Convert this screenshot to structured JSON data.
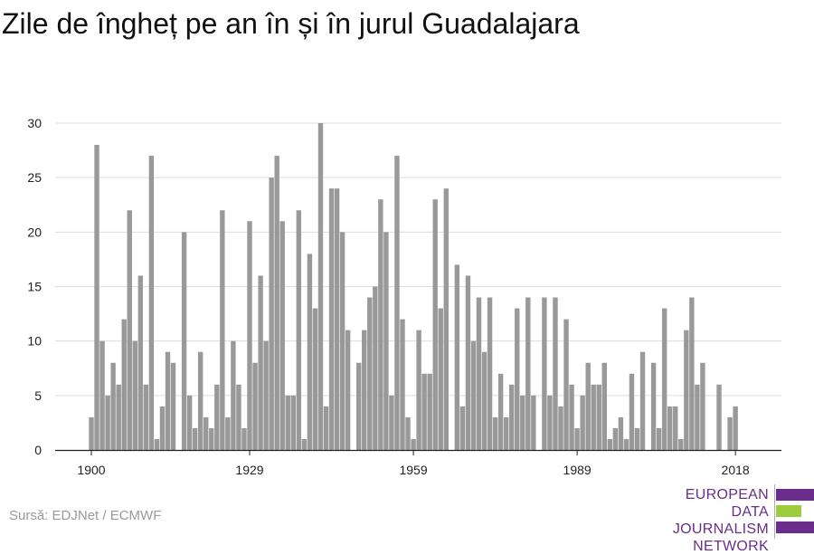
{
  "title": "Zile de îngheț pe an în și în jurul Guadalajara",
  "source": "Sursă: EDJNet / ECMWF",
  "logo": {
    "line1": "EUROPEAN",
    "line2": "DATA JOURNALISM",
    "line3": "NETWORK",
    "colors": [
      "#6b2d8c",
      "#9ccb3b",
      "#6b2d8c"
    ]
  },
  "chart_data": {
    "type": "bar",
    "title": "Zile de îngheț pe an în și în jurul Guadalajara",
    "xlabel": "",
    "ylabel": "",
    "x_start": 1900,
    "x_end": 2018,
    "x_ticks": [
      1900,
      1929,
      1959,
      1989,
      2018
    ],
    "y_ticks": [
      0,
      5,
      10,
      15,
      20,
      25,
      30
    ],
    "ylim": [
      0,
      30
    ],
    "grid": true,
    "bar_color": "#999999",
    "values": [
      3,
      28,
      10,
      5,
      8,
      6,
      12,
      22,
      10,
      16,
      6,
      27,
      1,
      4,
      9,
      8,
      0,
      20,
      5,
      2,
      9,
      3,
      2,
      6,
      22,
      3,
      10,
      6,
      2,
      21,
      8,
      16,
      10,
      25,
      27,
      21,
      5,
      5,
      22,
      1,
      18,
      13,
      30,
      4,
      24,
      24,
      20,
      11,
      0,
      8,
      11,
      14,
      15,
      23,
      20,
      5,
      27,
      12,
      3,
      1,
      11,
      7,
      7,
      23,
      13,
      24,
      0,
      17,
      4,
      16,
      10,
      14,
      9,
      14,
      3,
      7,
      3,
      6,
      13,
      5,
      14,
      5,
      0,
      14,
      5,
      14,
      4,
      12,
      6,
      2,
      5,
      8,
      6,
      6,
      8,
      1,
      2,
      3,
      1,
      7,
      2,
      9,
      0,
      8,
      2,
      13,
      4,
      4,
      1,
      11,
      14,
      6,
      8,
      0,
      0,
      6,
      0,
      3,
      4
    ]
  }
}
